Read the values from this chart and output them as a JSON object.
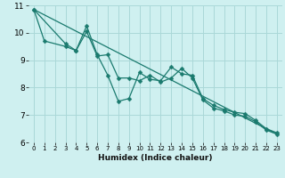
{
  "xlabel": "Humidex (Indice chaleur)",
  "bg_color": "#cff0f0",
  "grid_color": "#aad8d8",
  "line_color": "#1a7a6e",
  "xlim": [
    -0.5,
    23.5
  ],
  "ylim": [
    6,
    11
  ],
  "yticks": [
    6,
    7,
    8,
    9,
    10,
    11
  ],
  "xticks": [
    0,
    1,
    2,
    3,
    4,
    5,
    6,
    7,
    8,
    9,
    10,
    11,
    12,
    13,
    14,
    15,
    16,
    17,
    18,
    19,
    20,
    21,
    22,
    23
  ],
  "series1_x": [
    0,
    1,
    3,
    4,
    5,
    6,
    7,
    8,
    9,
    10,
    11,
    12,
    13,
    14,
    15,
    16,
    17,
    18,
    19,
    20,
    21,
    22,
    23
  ],
  "series1_y": [
    10.85,
    9.7,
    9.5,
    9.35,
    10.25,
    9.2,
    8.45,
    7.5,
    7.6,
    8.55,
    8.3,
    8.25,
    8.75,
    8.5,
    8.45,
    7.6,
    7.35,
    7.2,
    7.1,
    7.05,
    6.8,
    6.5,
    6.35
  ],
  "series2_x": [
    0,
    3,
    4,
    5,
    6,
    7,
    8,
    9,
    10,
    11,
    12,
    13,
    14,
    15,
    16,
    17,
    18,
    19,
    20,
    21,
    22,
    23
  ],
  "series2_y": [
    10.85,
    9.6,
    9.35,
    10.05,
    9.15,
    9.2,
    8.35,
    8.35,
    8.25,
    8.45,
    8.2,
    8.35,
    8.7,
    8.35,
    7.55,
    7.25,
    7.15,
    7.0,
    6.95,
    6.75,
    6.45,
    6.3
  ],
  "series3_x": [
    0,
    23
  ],
  "series3_y": [
    10.85,
    6.3
  ],
  "xlabel_fontsize": 6.5,
  "tick_fontsize_x": 5.0,
  "tick_fontsize_y": 6.5
}
